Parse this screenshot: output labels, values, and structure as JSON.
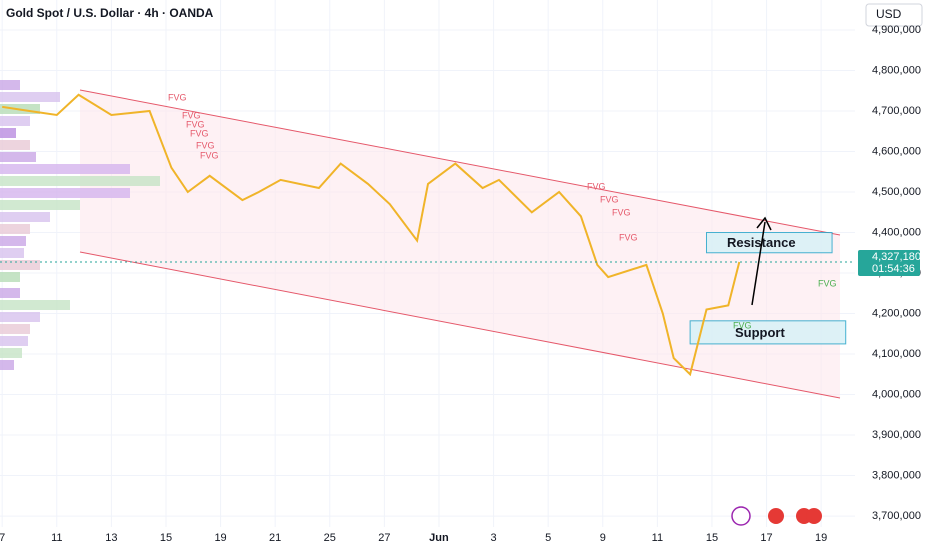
{
  "chart_data": {
    "type": "line",
    "title": "Gold Spot / U.S. Dollar · 4h · OANDA",
    "currency": "USD",
    "x": [
      0,
      0.5,
      1.0,
      1.4,
      2.0,
      2.7,
      3.1,
      3.4,
      3.8,
      4.4,
      4.7,
      5.1,
      5.8,
      6.2,
      6.7,
      7.1,
      7.6,
      7.8,
      8.3,
      8.8,
      9.1,
      9.7,
      10.2,
      10.6,
      10.9,
      11.1,
      11.8,
      12.1,
      12.3,
      12.6,
      12.9,
      13.3,
      13.5
    ],
    "series": [
      {
        "name": "XAUUSD",
        "color": "#f0b429",
        "values": [
          4710000,
          4700000,
          4690000,
          4740000,
          4690000,
          4700000,
          4560000,
          4500000,
          4540000,
          4480000,
          4500000,
          4530000,
          4510000,
          4570000,
          4520000,
          4470000,
          4380000,
          4520000,
          4570000,
          4510000,
          4530000,
          4450000,
          4500000,
          4440000,
          4320000,
          4290000,
          4320000,
          4200000,
          4090000,
          4050000,
          4210000,
          4220000,
          4327180
        ]
      }
    ],
    "xlim": [
      -0.04,
      15.62
    ],
    "xticks": [
      {
        "value": 0,
        "label": "7"
      },
      {
        "value": 1,
        "label": "11"
      },
      {
        "value": 2,
        "label": "13"
      },
      {
        "value": 3,
        "label": "15"
      },
      {
        "value": 4,
        "label": "19"
      },
      {
        "value": 5,
        "label": "21"
      },
      {
        "value": 6,
        "label": "25"
      },
      {
        "value": 7,
        "label": "27"
      },
      {
        "value": 8,
        "label": "Jun"
      },
      {
        "value": 9,
        "label": "3"
      },
      {
        "value": 10,
        "label": "5"
      },
      {
        "value": 11,
        "label": "9"
      },
      {
        "value": 12,
        "label": "11"
      },
      {
        "value": 13,
        "label": "15"
      },
      {
        "value": 14,
        "label": "17"
      },
      {
        "value": 15,
        "label": "19"
      }
    ],
    "ylim": [
      3673000,
      4974000
    ],
    "yticks": [
      {
        "value": 3700000,
        "label": "3,700,000"
      },
      {
        "value": 3800000,
        "label": "3,800,000"
      },
      {
        "value": 3900000,
        "label": "3,900,000"
      },
      {
        "value": 4000000,
        "label": "4,000,000"
      },
      {
        "value": 4100000,
        "label": "4,100,000"
      },
      {
        "value": 4200000,
        "label": "4,200,000"
      },
      {
        "value": 4300000,
        "label": "4,300,000"
      },
      {
        "value": 4400000,
        "label": "4,400,000"
      },
      {
        "value": 4500000,
        "label": "4,500,000"
      },
      {
        "value": 4600000,
        "label": "4,600,000"
      },
      {
        "value": 4700000,
        "label": "4,700,000"
      },
      {
        "value": 4800000,
        "label": "4,800,000"
      },
      {
        "value": 4900000,
        "label": "4,900,000"
      }
    ],
    "grid": true,
    "last_price": {
      "value": 4327180,
      "label": "4,327,180"
    },
    "countdown": "01:54:36",
    "zones": [
      {
        "label": "Resistance",
        "range": [
          4350000,
          4400000
        ],
        "x": [
          12.9,
          15.2
        ]
      },
      {
        "label": "Support",
        "range": [
          4125000,
          4182000
        ],
        "x": [
          12.6,
          15.45
        ]
      }
    ],
    "fvg_labels": [
      "FVG",
      "FVG",
      "FVG",
      "FVG",
      "FVG",
      "FVG",
      "FVG",
      "FVG",
      "FVG",
      "FVG",
      "FVG",
      "FVG"
    ]
  }
}
